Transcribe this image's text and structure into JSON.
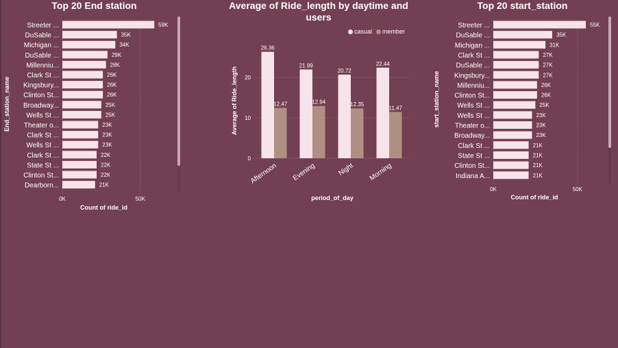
{
  "colors": {
    "background": "#733f52",
    "bar_light": "#f7e4ea",
    "casual": "#f7e4ea",
    "member": "#b09082",
    "grid": "#a07888"
  },
  "chart_data": [
    {
      "type": "bar",
      "orientation": "horizontal",
      "title": "Top 20 End station",
      "ylabel": "End_station_name",
      "xlabel": "Count of ride_id",
      "categories": [
        "Streeter ...",
        "DuSable ...",
        "Michigan ...",
        "DuSable ...",
        "Millenniu...",
        "Clark St ...",
        "Kingsbury...",
        "Clinton St...",
        "Broadway...",
        "Wells St ...",
        "Theater o...",
        "Clark St ...",
        "Wells St ...",
        "Clark St ...",
        "State St ...",
        "Clinton St...",
        "Dearborn..."
      ],
      "values": [
        59000,
        35000,
        34000,
        29000,
        28000,
        26000,
        26000,
        26000,
        25000,
        25000,
        23000,
        23000,
        23000,
        22000,
        22000,
        22000,
        21000
      ],
      "value_labels": [
        "59K",
        "35K",
        "34K",
        "29K",
        "28K",
        "26K",
        "26K",
        "26K",
        "25K",
        "25K",
        "23K",
        "23K",
        "23K",
        "22K",
        "22K",
        "22K",
        "21K"
      ],
      "xticks": [
        0,
        50000
      ],
      "xtick_labels": [
        "0K",
        "50K"
      ],
      "xlim": [
        0,
        62000
      ],
      "grid": true
    },
    {
      "type": "bar",
      "orientation": "vertical",
      "title": "Average of Ride_length by daytime and users",
      "xlabel": "period_of_day",
      "ylabel": "Average of Ride_length",
      "categories": [
        "Afternoon",
        "Evening",
        "Night",
        "Morning"
      ],
      "series": [
        {
          "name": "casual",
          "values": [
            26.36,
            21.99,
            20.72,
            22.44
          ],
          "value_labels": [
            "26.36",
            "21.99",
            "20.72",
            "22.44"
          ]
        },
        {
          "name": "member",
          "values": [
            12.47,
            12.94,
            12.35,
            11.47
          ],
          "value_labels": [
            "12.47",
            "12.94",
            "12.35",
            "11.47"
          ]
        }
      ],
      "yticks": [
        0,
        10,
        20
      ],
      "ytick_labels": [
        "0",
        "10",
        "20"
      ],
      "ylim": [
        0,
        28
      ],
      "legend": "top-right",
      "grid": true
    },
    {
      "type": "bar",
      "orientation": "horizontal",
      "title": "Top 20 start_station",
      "ylabel": "start_station_name",
      "xlabel": "Count of ride_id",
      "categories": [
        "Streeter ...",
        "DuSable ...",
        "Michigan ...",
        "Clark St ...",
        "DuSable ...",
        "Kingsbury...",
        "Millenniu...",
        "Clinton St...",
        "Wells St ...",
        "Wells St ...",
        "Theater o...",
        "Broadway...",
        "Clark St ...",
        "State St ...",
        "Clinton St...",
        "Indiana A..."
      ],
      "values": [
        55000,
        35000,
        31000,
        27000,
        27000,
        27000,
        26000,
        26000,
        25000,
        23000,
        23000,
        23000,
        21000,
        21000,
        21000,
        21000
      ],
      "value_labels": [
        "55K",
        "35K",
        "31K",
        "27K",
        "27K",
        "27K",
        "26K",
        "26K",
        "25K",
        "23K",
        "23K",
        "23K",
        "21K",
        "21K",
        "21K",
        "21K"
      ],
      "xticks": [
        0,
        50000
      ],
      "xtick_labels": [
        "0K",
        "50K"
      ],
      "xlim": [
        0,
        57000
      ],
      "grid": true
    }
  ]
}
